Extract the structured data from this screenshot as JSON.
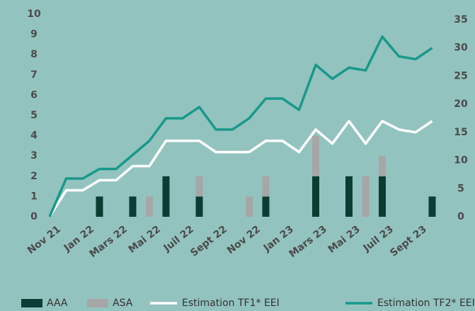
{
  "chart_data": {
    "type": "bar_line",
    "categories": [
      "Nov 21",
      null,
      "Jan 22",
      null,
      "Mars 22",
      null,
      "Mai 22",
      null,
      "Juil 22",
      null,
      "Sept 22",
      null,
      "Nov 22",
      null,
      "Jan 23",
      null,
      "Mars 23",
      null,
      "Mai 23",
      null,
      "Juil 23",
      null,
      "Sept 23",
      null
    ],
    "series": [
      {
        "name": "AAA",
        "type": "bar",
        "color": "#0b3d34",
        "axis": "y",
        "values": [
          null,
          null,
          null,
          1,
          null,
          1,
          null,
          2,
          null,
          1,
          null,
          null,
          null,
          1,
          null,
          null,
          2,
          null,
          2,
          null,
          2,
          null,
          null,
          1
        ]
      },
      {
        "name": "ASA",
        "type": "bar",
        "color": "#a6a6a6",
        "axis": "y",
        "values": [
          null,
          null,
          null,
          null,
          null,
          null,
          1,
          null,
          null,
          1,
          null,
          null,
          1,
          1,
          null,
          null,
          2,
          null,
          null,
          2,
          1,
          null,
          null,
          null
        ]
      },
      {
        "name": "Estimation TF1* EEI",
        "type": "line",
        "color": "#ffffff",
        "axis": "y2",
        "values": [
          0,
          4.7,
          4.7,
          6.5,
          6.5,
          9,
          9,
          13.5,
          13.5,
          13.5,
          11.5,
          11.5,
          11.5,
          13.5,
          13.5,
          11.5,
          15.5,
          13,
          17,
          13,
          17,
          15.5,
          15,
          17
        ]
      },
      {
        "name": "Estimation TF2* EEI",
        "type": "line",
        "color": "#18998a",
        "axis": "y2",
        "values": [
          0,
          6.8,
          6.8,
          8.5,
          8.5,
          11,
          13.5,
          17.5,
          17.5,
          19.5,
          15.5,
          15.5,
          17.5,
          21,
          21,
          19,
          27,
          24.5,
          26.5,
          26,
          32,
          28.5,
          28,
          30
        ]
      }
    ],
    "ylim": [
      0,
      10
    ],
    "yticks": [
      0,
      1,
      2,
      3,
      4,
      5,
      6,
      7,
      8,
      9,
      10
    ],
    "y2lim": [
      0,
      36
    ],
    "y2ticks": [
      0,
      5,
      10,
      15,
      20,
      25,
      30,
      35
    ],
    "grid": false,
    "legend": "bottom"
  }
}
